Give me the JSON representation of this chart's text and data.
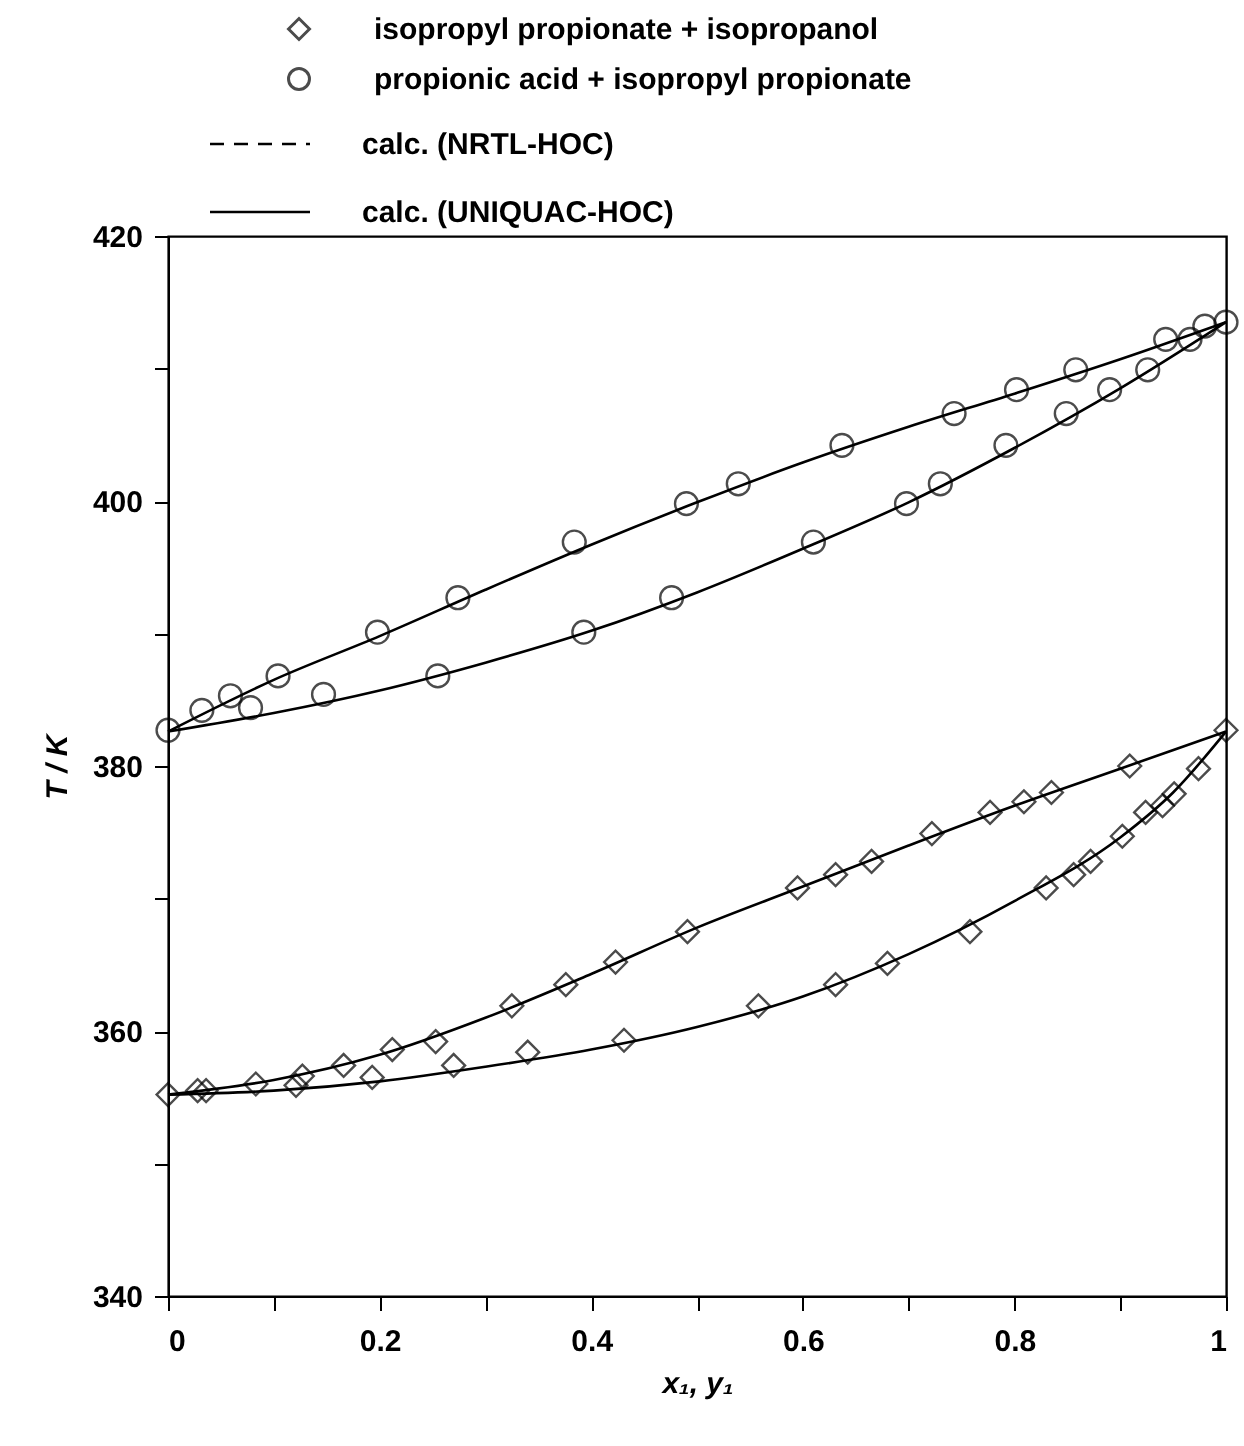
{
  "chart_data": {
    "type": "scatter",
    "xlabel": "x₁, y₁",
    "ylabel": "T / K",
    "xlim": [
      0,
      1
    ],
    "ylim": [
      340,
      420
    ],
    "xticks": [
      0,
      {
        "value": 0.1,
        "label": null
      },
      {
        "value": 0.2,
        "label": "0.2"
      },
      {
        "value": 0.3,
        "label": null
      },
      {
        "value": 0.4,
        "label": "0.4"
      },
      {
        "value": 0.5,
        "label": null
      },
      {
        "value": 0.6,
        "label": "0.6"
      },
      {
        "value": 0.7,
        "label": null
      },
      {
        "value": 0.8,
        "label": "0.8"
      },
      {
        "value": 0.9,
        "label": null
      },
      1
    ],
    "yticks": [
      340,
      {
        "value": 350,
        "label": null
      },
      360,
      {
        "value": 370,
        "label": null
      },
      380,
      {
        "value": 390,
        "label": null
      },
      400,
      {
        "value": 410,
        "label": null
      },
      420
    ],
    "grid": false,
    "legend": "top",
    "series": [
      {
        "name": "isopropyl propionate + isopropanol",
        "type": "scatter",
        "marker": "diamond",
        "color": "#000000",
        "x": [
          0,
          0.028,
          0.036,
          0.083,
          0.127,
          0.166,
          0.212,
          0.253,
          0.325,
          0.376,
          0.423,
          0.491,
          0.595,
          0.631,
          0.665,
          0.722,
          0.777,
          0.809,
          0.835,
          0.909,
          1,
          0.121,
          0.193,
          0.27,
          0.34,
          0.431,
          0.558,
          0.631,
          0.68,
          0.758,
          0.83,
          0.856,
          0.872,
          0.902,
          0.924,
          0.94,
          0.951,
          0.974
        ],
        "values": [
          355.2,
          355.5,
          355.5,
          356,
          356.6,
          357.4,
          358.6,
          359.2,
          361.9,
          363.5,
          365.2,
          367.5,
          370.8,
          371.8,
          372.8,
          374.9,
          376.5,
          377.3,
          378,
          380,
          382.7,
          355.9,
          356.5,
          357.4,
          358.4,
          359.3,
          361.9,
          363.5,
          365.1,
          367.5,
          370.8,
          371.8,
          372.8,
          374.7,
          376.5,
          377,
          377.9,
          379.8
        ]
      },
      {
        "name": "propionic acid + isopropyl propionate",
        "type": "scatter",
        "marker": "circle",
        "color": "#000000",
        "x": [
          0,
          0.032,
          0.059,
          0.104,
          0.198,
          0.274,
          0.384,
          0.49,
          0.539,
          0.637,
          0.743,
          0.802,
          0.858,
          0.943,
          1,
          0.078,
          0.147,
          0.255,
          0.393,
          0.476,
          0.61,
          0.698,
          0.73,
          0.792,
          0.849,
          0.89,
          0.926,
          0.966,
          0.98
        ],
        "values": [
          382.7,
          384.2,
          385.3,
          386.8,
          390.1,
          392.7,
          396.9,
          399.8,
          401.3,
          404.2,
          406.6,
          408.4,
          409.9,
          412.2,
          413.5,
          384.4,
          385.4,
          386.8,
          390.1,
          392.7,
          396.9,
          399.8,
          401.3,
          404.2,
          406.6,
          408.4,
          409.9,
          412.2,
          413.2
        ]
      },
      {
        "name": "calc. (NRTL-HOC)",
        "type": "line",
        "line_style": "dashed",
        "marker": "none",
        "color": "#000000"
      },
      {
        "name": "calc. (UNIQUAC-HOC)",
        "type": "line",
        "line_style": "solid",
        "marker": "none",
        "color": "#000000",
        "x": [
          0,
          0.1,
          0.2,
          0.3,
          0.4,
          0.5,
          0.6,
          0.7,
          0.8,
          0.9,
          1,
          null,
          0,
          0.1,
          0.2,
          0.3,
          0.4,
          0.5,
          0.6,
          0.7,
          0.8,
          0.9,
          0.95,
          1,
          null,
          0,
          0.1,
          0.2,
          0.3,
          0.4,
          0.5,
          0.6,
          0.7,
          0.8,
          0.9,
          1,
          null,
          0,
          0.1,
          0.2,
          0.3,
          0.4,
          0.5,
          0.6,
          0.7,
          0.8,
          0.9,
          1
        ],
        "values": [
          355.2,
          356.3,
          358.2,
          361,
          364.3,
          367.8,
          370.9,
          374,
          377,
          379.8,
          382.6,
          null,
          355.2,
          355.5,
          356.2,
          357.3,
          358.6,
          360.3,
          362.6,
          365.8,
          369.8,
          374.6,
          378,
          382.6,
          null,
          382.6,
          386.5,
          389.8,
          393.3,
          396.7,
          399.9,
          402.9,
          405.6,
          408.1,
          410.7,
          413.5,
          null,
          382.6,
          384,
          385.7,
          387.8,
          390.2,
          393.1,
          396.4,
          399.9,
          404,
          408.5,
          413.5
        ]
      }
    ]
  }
}
